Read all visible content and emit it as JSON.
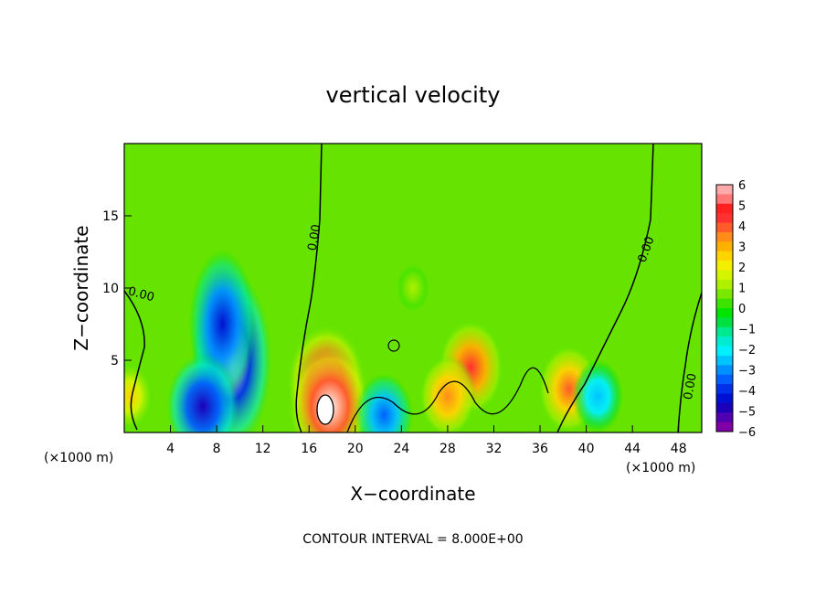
{
  "chart_data": {
    "type": "heatmap",
    "title": "vertical velocity",
    "xlabel": "X−coordinate",
    "ylabel": "Z−coordinate",
    "x_unit": "(×1000 m)",
    "y_unit": "(×1000 m)",
    "xlim": [
      0,
      50
    ],
    "ylim": [
      0,
      20
    ],
    "x_ticks": [
      4,
      8,
      12,
      16,
      20,
      24,
      28,
      32,
      36,
      40,
      44,
      48
    ],
    "y_ticks": [
      5,
      10,
      15
    ],
    "colorbar": {
      "min": -6,
      "max": 6,
      "ticks": [
        "6",
        "5",
        "4",
        "3",
        "2",
        "1",
        "0",
        "−1",
        "−2",
        "−3",
        "−4",
        "−5",
        "−6"
      ],
      "colors": [
        "#ffaaaa",
        "#ff7777",
        "#ff2020",
        "#ff3030",
        "#ff5a2a",
        "#ff8c1a",
        "#ffb000",
        "#ffd400",
        "#f4ee00",
        "#d4f400",
        "#aef000",
        "#7ae800",
        "#3ce400",
        "#00e400",
        "#00e040",
        "#00e890",
        "#00ecd0",
        "#00f0ff",
        "#00c4ff",
        "#0090ff",
        "#0060ff",
        "#0030e8",
        "#0010d0",
        "#1c00b8",
        "#5000b0",
        "#8000a8"
      ]
    },
    "contour_labels": [
      "0.00",
      "0.00",
      "0.00",
      "0.00"
    ],
    "contour_interval_text": "CONTOUR INTERVAL = 8.000E+00",
    "features": [
      {
        "x": 9.3,
        "z": 5.0,
        "w": -5.8
      },
      {
        "x": 8.5,
        "z": 7.5,
        "w": -4.5
      },
      {
        "x": 6.8,
        "z": 1.8,
        "w": -5.0
      },
      {
        "x": 17.5,
        "z": 3.5,
        "w": 5.5
      },
      {
        "x": 17.8,
        "z": 1.8,
        "w": 6.0
      },
      {
        "x": 30.0,
        "z": 4.5,
        "w": 4.5
      },
      {
        "x": 28.0,
        "z": 2.5,
        "w": 3.5
      },
      {
        "x": 38.5,
        "z": 3.0,
        "w": 4.0
      },
      {
        "x": 22.5,
        "z": 1.2,
        "w": -3.5
      },
      {
        "x": 41.0,
        "z": 2.5,
        "w": -2.8
      },
      {
        "x": 0.5,
        "z": 2.5,
        "w": 2.5
      },
      {
        "x": 25.0,
        "z": 10.0,
        "w": 1.0
      }
    ]
  }
}
